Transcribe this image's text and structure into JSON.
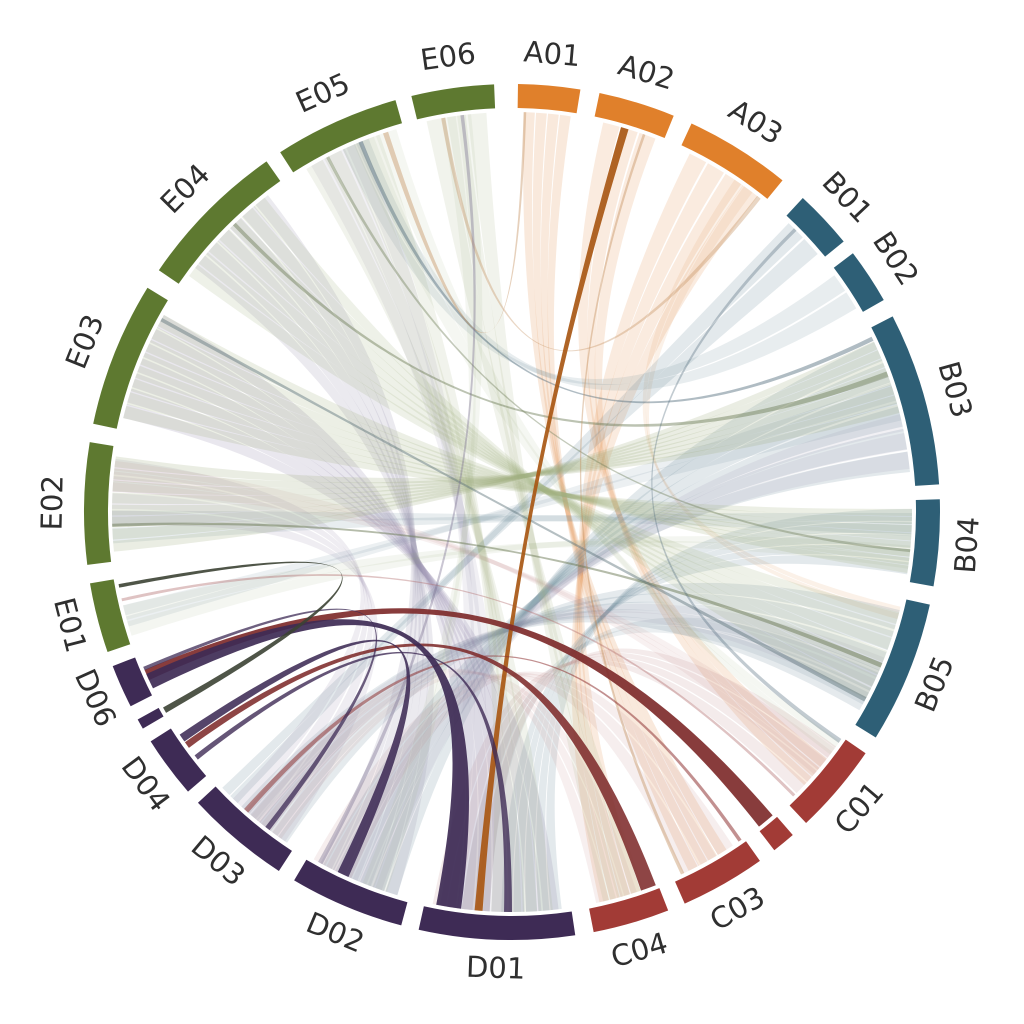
{
  "figure": {
    "background": "#ffffff",
    "label_color": "#2f2f2f",
    "label_font_size": 29
  },
  "chart_data": {
    "type": "chord",
    "title": "",
    "groups": [
      {
        "id": "A",
        "color": "#E0802B"
      },
      {
        "id": "B",
        "color": "#2E5F76"
      },
      {
        "id": "C",
        "color": "#A23B36"
      },
      {
        "id": "D",
        "color": "#3E2B55"
      },
      {
        "id": "E",
        "color": "#5E7930"
      }
    ],
    "segments": [
      {
        "id": "A01",
        "group": "A",
        "start": 0.8,
        "end": 9.2,
        "labeled": true
      },
      {
        "id": "A02",
        "group": "A",
        "start": 11.8,
        "end": 22.2,
        "labeled": true
      },
      {
        "id": "A03",
        "group": "A",
        "start": 24.8,
        "end": 39.2,
        "labeled": true
      },
      {
        "id": "B01",
        "group": "B",
        "start": 42.8,
        "end": 50.8,
        "labeled": true
      },
      {
        "id": "B02",
        "group": "B",
        "start": 52.8,
        "end": 60.3,
        "labeled": true
      },
      {
        "id": "B03",
        "group": "B",
        "start": 62.8,
        "end": 86.3,
        "labeled": true
      },
      {
        "id": "B04",
        "group": "B",
        "start": 88.3,
        "end": 100.0,
        "labeled": true
      },
      {
        "id": "B05",
        "group": "B",
        "start": 102.5,
        "end": 121.8,
        "labeled": true
      },
      {
        "id": "C01",
        "group": "C",
        "start": 124.3,
        "end": 136.6,
        "labeled": true
      },
      {
        "id": "C02",
        "group": "C",
        "start": 139.0,
        "end": 142.2,
        "labeled": false
      },
      {
        "id": "C03",
        "group": "C",
        "start": 144.6,
        "end": 156.2,
        "labeled": true
      },
      {
        "id": "C04",
        "group": "C",
        "start": 158.6,
        "end": 169.0,
        "labeled": true
      },
      {
        "id": "D01",
        "group": "D",
        "start": 171.5,
        "end": 192.6,
        "labeled": true
      },
      {
        "id": "D02",
        "group": "D",
        "start": 195.0,
        "end": 210.6,
        "labeled": true
      },
      {
        "id": "D03",
        "group": "D",
        "start": 213.0,
        "end": 227.2,
        "labeled": true
      },
      {
        "id": "D04",
        "group": "D",
        "start": 229.2,
        "end": 237.6,
        "labeled": true
      },
      {
        "id": "D05",
        "group": "D",
        "start": 239.6,
        "end": 241.0,
        "labeled": false
      },
      {
        "id": "D06",
        "group": "D",
        "start": 243.0,
        "end": 248.9,
        "labeled": true
      },
      {
        "id": "E01",
        "group": "E",
        "start": 250.9,
        "end": 260.4,
        "labeled": true
      },
      {
        "id": "E02",
        "group": "E",
        "start": 262.9,
        "end": 279.4,
        "labeled": true
      },
      {
        "id": "E03",
        "group": "E",
        "start": 281.9,
        "end": 301.6,
        "labeled": true
      },
      {
        "id": "E04",
        "group": "E",
        "start": 304.4,
        "end": 325.0,
        "labeled": true
      },
      {
        "id": "E05",
        "group": "E",
        "start": 327.2,
        "end": 344.2,
        "labeled": true
      },
      {
        "id": "E06",
        "group": "E",
        "start": 346.4,
        "end": 357.6,
        "labeled": true
      }
    ],
    "chords": [
      {
        "s": "A01",
        "sf": [
          0.1,
          0.92
        ],
        "t": "C03",
        "tf": [
          0.25,
          0.8
        ],
        "color": "#E2924E",
        "opacity": 0.2,
        "strands": 4
      },
      {
        "s": "A02",
        "sf": [
          0.12,
          0.9
        ],
        "t": "C01",
        "tf": [
          0.3,
          0.72
        ],
        "color": "#E2924E",
        "opacity": 0.18,
        "strands": 3
      },
      {
        "s": "A03",
        "sf": [
          0.1,
          0.92
        ],
        "t": "C04",
        "tf": [
          0.25,
          0.85
        ],
        "color": "#E2924E",
        "opacity": 0.18,
        "strands": 4
      },
      {
        "s": "A03",
        "sf": [
          0.62,
          0.85
        ],
        "t": "B05",
        "tf": [
          0.06,
          0.16
        ],
        "color": "#E2924E",
        "opacity": 0.13,
        "strands": 2
      },
      {
        "s": "B01",
        "sf": [
          0.1,
          0.9
        ],
        "t": "D03",
        "tf": [
          0.72,
          0.95
        ],
        "color": "#628496",
        "opacity": 0.18,
        "strands": 2
      },
      {
        "s": "B02",
        "sf": [
          0.1,
          0.9
        ],
        "t": "E05",
        "tf": [
          0.45,
          0.7
        ],
        "color": "#628496",
        "opacity": 0.15,
        "strands": 2
      },
      {
        "s": "B03",
        "sf": [
          0.08,
          0.92
        ],
        "t": "D02",
        "tf": [
          0.1,
          0.85
        ],
        "color": "#628496",
        "opacity": 0.18,
        "strands": 6
      },
      {
        "s": "B04",
        "sf": [
          0.1,
          0.92
        ],
        "t": "D01",
        "tf": [
          0.06,
          0.48
        ],
        "color": "#628496",
        "opacity": 0.18,
        "strands": 5
      },
      {
        "s": "B05",
        "sf": [
          0.08,
          0.9
        ],
        "t": "D03",
        "tf": [
          0.08,
          0.68
        ],
        "color": "#628496",
        "opacity": 0.17,
        "strands": 5
      },
      {
        "s": "B05",
        "sf": [
          0.55,
          0.85
        ],
        "t": "D01",
        "tf": [
          0.55,
          0.75
        ],
        "color": "#628496",
        "opacity": 0.13,
        "strands": 2
      },
      {
        "s": "B04",
        "sf": [
          0.15,
          0.45
        ],
        "t": "E02",
        "tf": [
          0.15,
          0.45
        ],
        "color": "#628496",
        "opacity": 0.15,
        "strands": 2
      },
      {
        "s": "B03",
        "sf": [
          0.35,
          0.6
        ],
        "t": "E01",
        "tf": [
          0.25,
          0.6
        ],
        "color": "#628496",
        "opacity": 0.12,
        "strands": 2
      },
      {
        "s": "C01",
        "sf": [
          0.12,
          0.85
        ],
        "t": "D01",
        "tf": [
          0.55,
          0.95
        ],
        "color": "#C48E8E",
        "opacity": 0.18,
        "strands": 4
      },
      {
        "s": "C01",
        "sf": [
          0.2,
          0.55
        ],
        "t": "E02",
        "tf": [
          0.6,
          0.88
        ],
        "color": "#C48E8E",
        "opacity": 0.12,
        "strands": 3
      },
      {
        "s": "C03",
        "sf": [
          0.15,
          0.88
        ],
        "t": "D02",
        "tf": [
          0.55,
          0.95
        ],
        "color": "#C48E8E",
        "opacity": 0.15,
        "strands": 3
      },
      {
        "s": "C04",
        "sf": [
          0.3,
          0.9
        ],
        "t": "D03",
        "tf": [
          0.15,
          0.55
        ],
        "color": "#C48E8E",
        "opacity": 0.14,
        "strands": 3
      },
      {
        "s": "D01",
        "sf": [
          0.08,
          0.9
        ],
        "t": "E03",
        "tf": [
          0.08,
          0.9
        ],
        "color": "#9288A8",
        "opacity": 0.2,
        "strands": 7
      },
      {
        "s": "D02",
        "sf": [
          0.1,
          0.88
        ],
        "t": "E04",
        "tf": [
          0.15,
          0.88
        ],
        "color": "#9288A8",
        "opacity": 0.18,
        "strands": 6
      },
      {
        "s": "D01",
        "sf": [
          0.45,
          0.92
        ],
        "t": "E05",
        "tf": [
          0.15,
          0.65
        ],
        "color": "#9288A8",
        "opacity": 0.13,
        "strands": 3
      },
      {
        "s": "D03",
        "sf": [
          0.1,
          0.8
        ],
        "t": "E02",
        "tf": [
          0.3,
          0.9
        ],
        "color": "#9288A8",
        "opacity": 0.15,
        "strands": 4
      },
      {
        "s": "D02",
        "sf": [
          0.25,
          0.7
        ],
        "t": "B03",
        "tf": [
          0.55,
          0.9
        ],
        "color": "#9288A8",
        "opacity": 0.13,
        "strands": 3
      },
      {
        "s": "D03",
        "sf": [
          0.3,
          0.65
        ],
        "t": "B05",
        "tf": [
          0.45,
          0.8
        ],
        "color": "#9288A8",
        "opacity": 0.11,
        "strands": 2
      },
      {
        "s": "E02",
        "sf": [
          0.08,
          0.92
        ],
        "t": "B03",
        "tf": [
          0.08,
          0.55
        ],
        "color": "#9FAF7E",
        "opacity": 0.22,
        "strands": 8
      },
      {
        "s": "E03",
        "sf": [
          0.08,
          0.9
        ],
        "t": "B04",
        "tf": [
          0.1,
          0.9
        ],
        "color": "#9FAF7E",
        "opacity": 0.2,
        "strands": 8
      },
      {
        "s": "E04",
        "sf": [
          0.08,
          0.85
        ],
        "t": "B05",
        "tf": [
          0.1,
          0.8
        ],
        "color": "#9FAF7E",
        "opacity": 0.18,
        "strands": 7
      },
      {
        "s": "E05",
        "sf": [
          0.1,
          0.8
        ],
        "t": "D01",
        "tf": [
          0.12,
          0.55
        ],
        "color": "#9FAF7E",
        "opacity": 0.15,
        "strands": 4
      },
      {
        "s": "E06",
        "sf": [
          0.1,
          0.9
        ],
        "t": "C04",
        "tf": [
          0.2,
          0.8
        ],
        "color": "#9FAF7E",
        "opacity": 0.15,
        "strands": 3
      },
      {
        "s": "E06",
        "sf": [
          0.3,
          0.7
        ],
        "t": "D02",
        "tf": [
          0.2,
          0.45
        ],
        "color": "#9FAF7E",
        "opacity": 0.11,
        "strands": 2
      },
      {
        "s": "E01",
        "sf": [
          0.1,
          0.6
        ],
        "t": "B04",
        "tf": [
          0.55,
          0.85
        ],
        "color": "#9FAF7E",
        "opacity": 0.11,
        "strands": 2
      },
      {
        "s": "E05",
        "sf": [
          0.55,
          0.95
        ],
        "t": "C01",
        "tf": [
          0.05,
          0.25
        ],
        "color": "#9FAF7E",
        "opacity": 0.1,
        "strands": 2
      },
      {
        "s": "E02",
        "sf": [
          0.3,
          0.33
        ],
        "t": "B05",
        "tf": [
          0.5,
          0.54
        ],
        "color": "#6B7A55",
        "opacity": 0.5,
        "strands": 1
      },
      {
        "s": "E04",
        "sf": [
          0.55,
          0.58
        ],
        "t": "B03",
        "tf": [
          0.28,
          0.32
        ],
        "color": "#6B7A55",
        "opacity": 0.45,
        "strands": 1
      },
      {
        "s": "E05",
        "sf": [
          0.3,
          0.33
        ],
        "t": "B04",
        "tf": [
          0.6,
          0.64
        ],
        "color": "#6B7A55",
        "opacity": 0.4,
        "strands": 1
      },
      {
        "s": "E03",
        "sf": [
          0.84,
          0.87
        ],
        "t": "B05",
        "tf": [
          0.78,
          0.82
        ],
        "color": "#5C7078",
        "opacity": 0.45,
        "strands": 1
      },
      {
        "s": "B03",
        "sf": [
          0.05,
          0.08
        ],
        "t": "E05",
        "tf": [
          0.6,
          0.64
        ],
        "color": "#4F6B7A",
        "opacity": 0.45,
        "strands": 1
      },
      {
        "s": "A01",
        "sf": [
          0.1,
          0.15
        ],
        "t": "E05",
        "tf": [
          0.82,
          0.87
        ],
        "color": "#C08A55",
        "opacity": 0.4,
        "strands": 1
      },
      {
        "s": "A03",
        "sf": [
          0.9,
          0.95
        ],
        "t": "E06",
        "tf": [
          0.3,
          0.36
        ],
        "color": "#C08A55",
        "opacity": 0.35,
        "strands": 1
      },
      {
        "s": "A02",
        "sf": [
          0.7,
          0.74
        ],
        "t": "C03",
        "tf": [
          0.85,
          0.9
        ],
        "color": "#C08A55",
        "opacity": 0.4,
        "strands": 1
      },
      {
        "s": "C01",
        "sf": [
          0.86,
          0.9
        ],
        "t": "E01",
        "tf": [
          0.65,
          0.7
        ],
        "color": "#B06868",
        "opacity": 0.4,
        "strands": 1
      },
      {
        "s": "B01",
        "sf": [
          0.25,
          0.32
        ],
        "t": "C01",
        "tf": [
          0.02,
          0.08
        ],
        "color": "#4F6B7A",
        "opacity": 0.35,
        "strands": 1
      },
      {
        "s": "D02",
        "sf": [
          0.85,
          0.9
        ],
        "t": "E06",
        "tf": [
          0.55,
          0.6
        ],
        "color": "#7A7090",
        "opacity": 0.4,
        "strands": 1
      },
      {
        "s": "A02",
        "sf": [
          0.38,
          0.5
        ],
        "t": "D01",
        "tf": [
          0.6,
          0.66
        ],
        "color": "#A85713",
        "opacity": 0.92,
        "strands": 1
      },
      {
        "s": "C02",
        "sf": [
          0.06,
          0.94
        ],
        "t": "D06",
        "tf": [
          0.35,
          0.65
        ],
        "color": "#7E2B2B",
        "opacity": 0.92,
        "strands": 1
      },
      {
        "s": "C04",
        "sf": [
          0.02,
          0.26
        ],
        "t": "D04",
        "tf": [
          0.55,
          0.68
        ],
        "color": "#7E2B2B",
        "opacity": 0.88,
        "strands": 1
      },
      {
        "s": "C03",
        "sf": [
          0.03,
          0.08
        ],
        "t": "D03",
        "tf": [
          0.58,
          0.64
        ],
        "color": "#8F3535",
        "opacity": 0.55,
        "strands": 1
      },
      {
        "s": "D06",
        "sf": [
          0.12,
          0.55
        ],
        "t": "D01",
        "tf": [
          0.74,
          0.93
        ],
        "color": "#3E2B55",
        "opacity": 0.92,
        "strands": 1
      },
      {
        "s": "D04",
        "sf": [
          0.68,
          0.84
        ],
        "t": "D02",
        "tf": [
          0.58,
          0.7
        ],
        "color": "#3E2B55",
        "opacity": 0.88,
        "strands": 1
      },
      {
        "s": "D04",
        "sf": [
          0.3,
          0.4
        ],
        "t": "D01",
        "tf": [
          0.4,
          0.46
        ],
        "color": "#3E2B55",
        "opacity": 0.8,
        "strands": 1
      },
      {
        "s": "D06",
        "sf": [
          0.62,
          0.72
        ],
        "t": "D03",
        "tf": [
          0.3,
          0.36
        ],
        "color": "#3E2B55",
        "opacity": 0.75,
        "strands": 1
      },
      {
        "s": "E01",
        "sf": [
          0.86,
          0.92
        ],
        "t": "D05",
        "tf": [
          0.15,
          0.85
        ],
        "color": "#3C4334",
        "opacity": 0.9,
        "strands": 1
      }
    ]
  }
}
